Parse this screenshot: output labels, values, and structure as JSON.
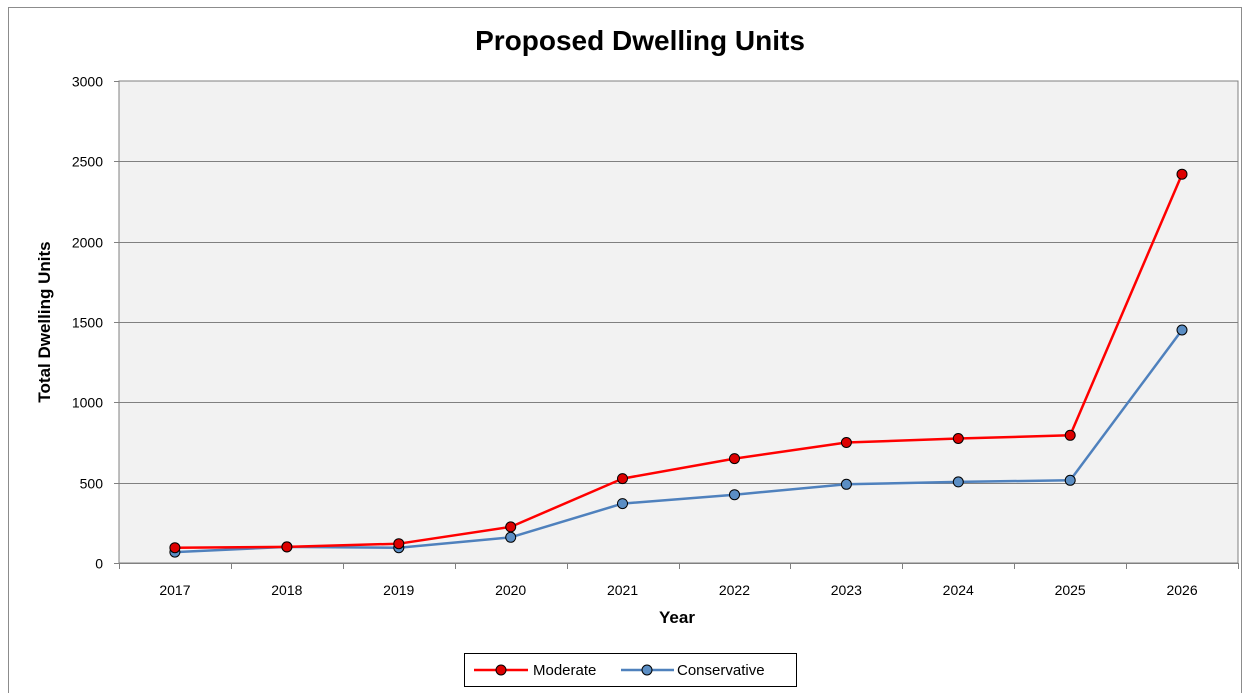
{
  "chart_data": {
    "type": "line",
    "title": "Proposed Dwelling Units",
    "xlabel": "Year",
    "ylabel": "Total Dwelling Units",
    "categories": [
      "2017",
      "2018",
      "2019",
      "2020",
      "2021",
      "2022",
      "2023",
      "2024",
      "2025",
      "2026"
    ],
    "ylim": [
      0,
      3000
    ],
    "yticks": [
      0,
      500,
      1000,
      1500,
      2000,
      2500,
      3000
    ],
    "grid": true,
    "legend_position": "bottom",
    "series": [
      {
        "name": "Moderate",
        "color": "#ff0000",
        "marker_color": "#dd0000",
        "values": [
          95,
          100,
          120,
          225,
          525,
          650,
          750,
          775,
          795,
          2420
        ]
      },
      {
        "name": "Conservative",
        "color": "#4f81bd",
        "marker_color": "#5b8ec4",
        "values": [
          68,
          100,
          95,
          160,
          370,
          425,
          490,
          505,
          515,
          1450
        ]
      }
    ],
    "plot_background": "#f2f2f2",
    "gridline_color": "#808080"
  }
}
